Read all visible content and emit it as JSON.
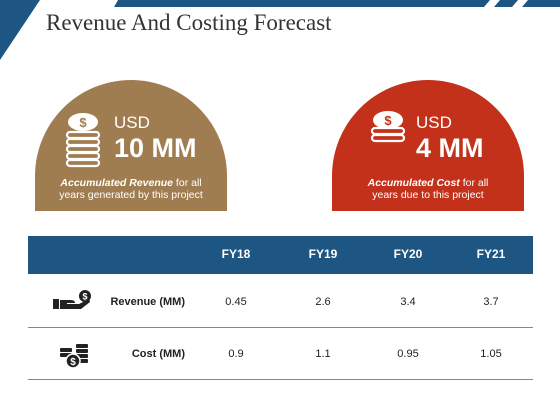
{
  "title": "Revenue And Costing Forecast",
  "revenue_card": {
    "currency": "USD",
    "amount": "10 MM",
    "desc_bold": "Accumulated Revenue",
    "desc_line1_rest": " for all",
    "desc_line2": "years generated by this project",
    "icon": "coin-stack-icon",
    "color": "#a07d51"
  },
  "cost_card": {
    "currency": "USD",
    "amount": "4 MM",
    "desc_bold": "Accumulated Cost",
    "desc_line1_rest": " for all",
    "desc_line2": "years due to this project",
    "icon": "coin-stack-icon",
    "color": "#c3311a"
  },
  "table": {
    "header_color": "#1d5583",
    "columns": [
      "FY18",
      "FY19",
      "FY20",
      "FY21"
    ],
    "rows": [
      {
        "label": "Revenue (MM)",
        "icon": "money-in-hand-icon",
        "values": [
          "0.45",
          "2.6",
          "3.4",
          "3.7"
        ]
      },
      {
        "label": "Cost (MM)",
        "icon": "coins-with-dollar-icon",
        "values": [
          "0.9",
          "1.1",
          "0.95",
          "1.05"
        ]
      }
    ]
  }
}
